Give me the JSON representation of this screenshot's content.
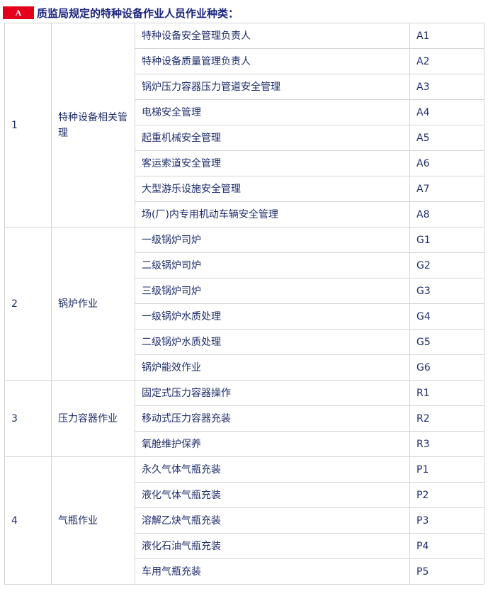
{
  "header": {
    "badge": "A",
    "title": "质监局规定的特种设备作业人员作业种类："
  },
  "table": {
    "groups": [
      {
        "no": "1",
        "name": "特种设备相关管理",
        "items": [
          {
            "name": "特种设备安全管理负责人",
            "code": "A1"
          },
          {
            "name": "特种设备质量管理负责人",
            "code": "A2"
          },
          {
            "name": "锅炉压力容器压力管道安全管理",
            "code": "A3"
          },
          {
            "name": "电梯安全管理",
            "code": "A4"
          },
          {
            "name": "起重机械安全管理",
            "code": "A5"
          },
          {
            "name": "客运索道安全管理",
            "code": "A6"
          },
          {
            "name": "大型游乐设施安全管理",
            "code": "A7"
          },
          {
            "name": "场(厂)内专用机动车辆安全管理",
            "code": "A8"
          }
        ]
      },
      {
        "no": "2",
        "name": "锅炉作业",
        "items": [
          {
            "name": "一级锅炉司炉",
            "code": "G1"
          },
          {
            "name": "二级锅炉司炉",
            "code": "G2"
          },
          {
            "name": "三级锅炉司炉",
            "code": "G3"
          },
          {
            "name": "一级锅炉水质处理",
            "code": "G4"
          },
          {
            "name": "二级锅炉水质处理",
            "code": "G5"
          },
          {
            "name": "锅炉能效作业",
            "code": "G6"
          }
        ]
      },
      {
        "no": "3",
        "name": "压力容器作业",
        "items": [
          {
            "name": "固定式压力容器操作",
            "code": "R1"
          },
          {
            "name": "移动式压力容器充装",
            "code": "R2"
          },
          {
            "name": "氧舱维护保养",
            "code": "R3"
          }
        ]
      },
      {
        "no": "4",
        "name": "气瓶作业",
        "items": [
          {
            "name": "永久气体气瓶充装",
            "code": "P1"
          },
          {
            "name": "液化气体气瓶充装",
            "code": "P2"
          },
          {
            "name": "溶解乙炔气瓶充装",
            "code": "P3"
          },
          {
            "name": "液化石油气瓶充装",
            "code": "P4"
          },
          {
            "name": "车用气瓶充装",
            "code": "P5"
          }
        ]
      }
    ]
  }
}
